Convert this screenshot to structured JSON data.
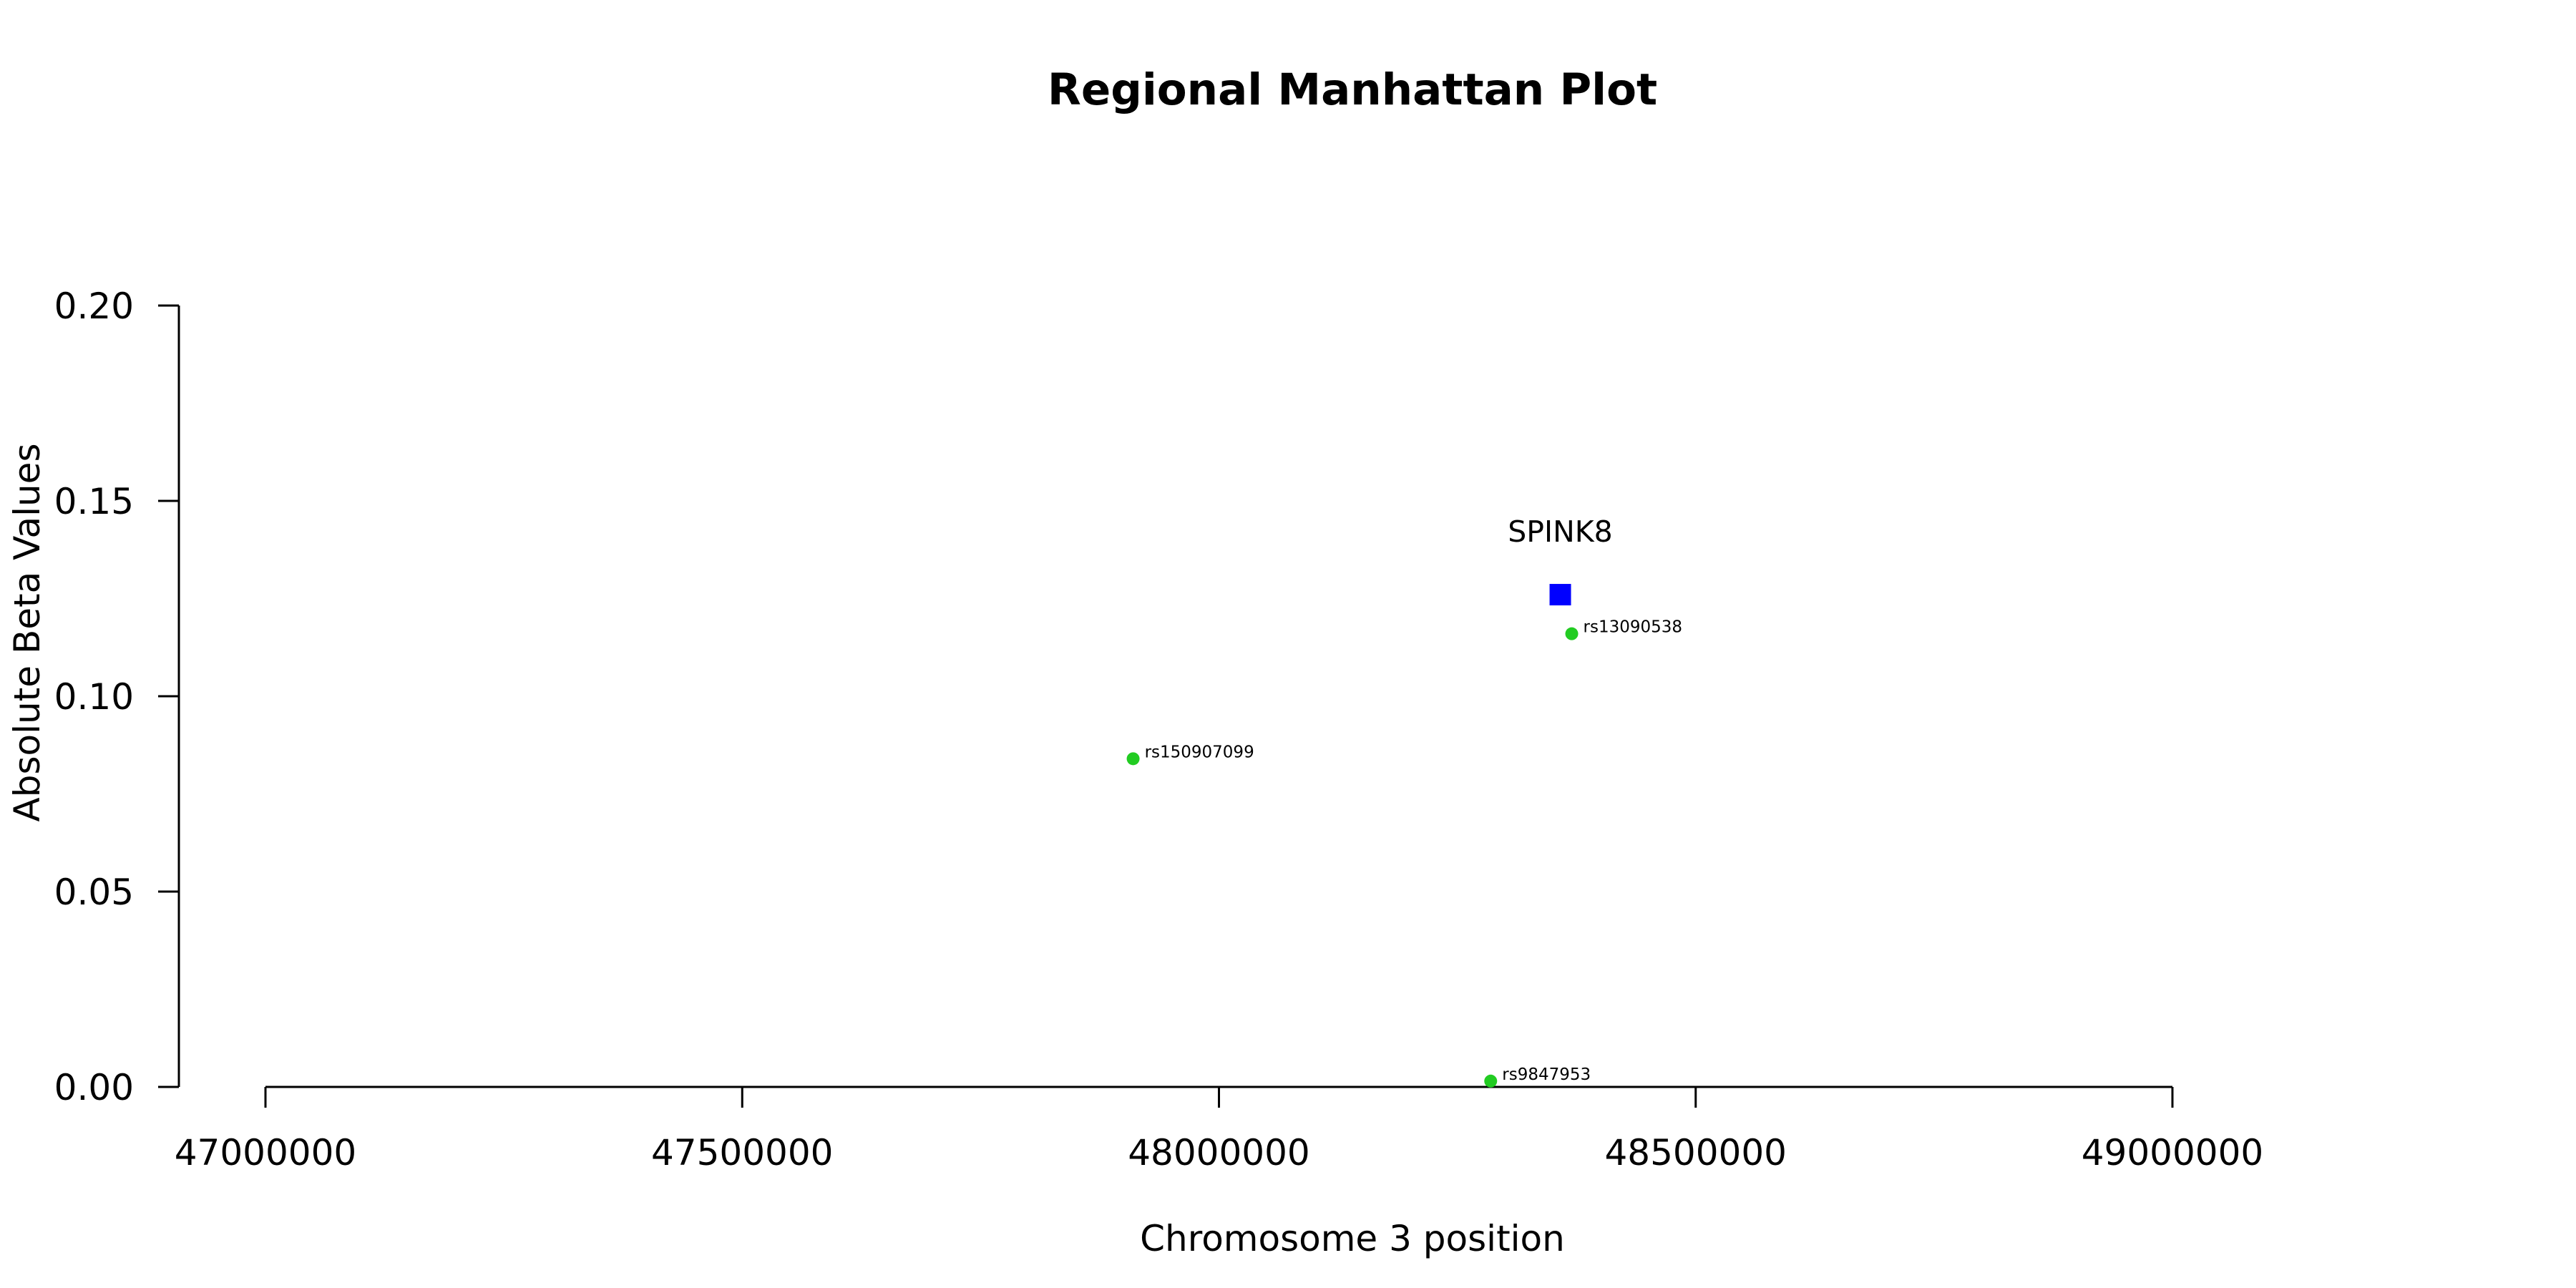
{
  "chart_data": {
    "type": "scatter",
    "title": "Regional Manhattan Plot",
    "xlabel": "Chromosome 3 position",
    "ylabel": "Absolute Beta Values",
    "xlim": [
      47000000,
      49000000
    ],
    "ylim": [
      0,
      0.2
    ],
    "x_ticks": [
      47000000,
      47500000,
      48000000,
      48500000,
      49000000
    ],
    "x_tick_labels": [
      "47000000",
      "47500000",
      "48000000",
      "48500000",
      "49000000"
    ],
    "y_ticks": [
      0,
      0.05,
      0.1,
      0.15,
      0.2
    ],
    "y_tick_labels": [
      "0.00",
      "0.05",
      "0.10",
      "0.15",
      "0.20"
    ],
    "grid": false,
    "colors": {
      "snp": "#22cc22",
      "gene": "#0000ff"
    },
    "snps": [
      {
        "label": "rs150907099",
        "x": 47910000,
        "y": 0.084
      },
      {
        "label": "rs13090538",
        "x": 48370000,
        "y": 0.116
      },
      {
        "label": "rs9847953",
        "x": 48285000,
        "y": 0.0015
      }
    ],
    "genes": [
      {
        "label": "SPINK8",
        "x": 48358000,
        "y": 0.126
      }
    ]
  }
}
